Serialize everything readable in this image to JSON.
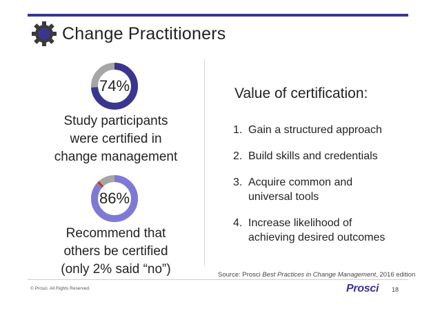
{
  "header": {
    "title": "Change Practitioners",
    "icon": "gear-icon"
  },
  "stats": [
    {
      "percent_label": "74%",
      "percent": 74,
      "text_lines": [
        "Study participants",
        "were certified in",
        "change management"
      ]
    },
    {
      "percent_label": "86%",
      "percent": 86,
      "highlight_percent": 2,
      "text_lines": [
        "Recommend that",
        "others be certified",
        "(only 2% said “no”)"
      ]
    }
  ],
  "value": {
    "title": "Value of certification:",
    "items": [
      {
        "num": "1.",
        "lines": [
          "Gain a structured approach"
        ]
      },
      {
        "num": "2.",
        "lines": [
          "Build skills and credentials"
        ]
      },
      {
        "num": "3.",
        "lines": [
          "Acquire common and",
          "universal tools"
        ]
      },
      {
        "num": "4.",
        "lines": [
          "Increase likelihood of",
          "achieving desired outcomes"
        ]
      }
    ]
  },
  "source": {
    "prefix": "Source: Prosci ",
    "title": "Best Practices in Change Management",
    "suffix": ", 2016 edition"
  },
  "footer": {
    "copyright": "© Prosci. All Rights Reserved.",
    "logo": "Prosci",
    "page_number": "18"
  },
  "colors": {
    "accent": "#3b3590",
    "donut_fill_1": "#3b3590",
    "donut_fill_2": "#7f79d6",
    "donut_track": "#a6a6a6",
    "donut_no": "#c0392b"
  }
}
